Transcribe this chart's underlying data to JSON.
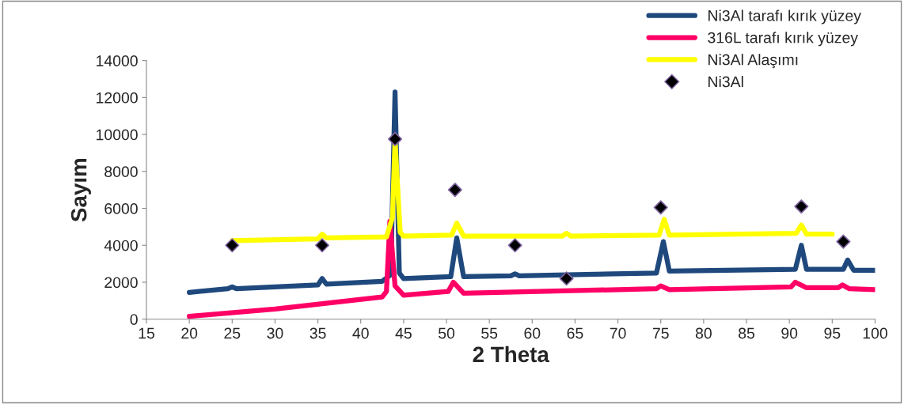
{
  "chart_data": {
    "type": "line",
    "xlabel": "2 Theta",
    "ylabel": "Sayım",
    "xlim": [
      15,
      100
    ],
    "xticks": [
      15,
      20,
      25,
      30,
      35,
      40,
      45,
      50,
      55,
      60,
      65,
      70,
      75,
      80,
      85,
      90,
      95,
      100
    ],
    "ylim": [
      0,
      14000
    ],
    "yticks": [
      0,
      2000,
      4000,
      6000,
      8000,
      10000,
      12000,
      14000
    ],
    "grid": false,
    "legend": "top right",
    "marker": "none",
    "line_style": "solid",
    "series": [
      {
        "name": "Ni3Al tarafı kırık yüzey",
        "color": "#1f497d",
        "x": [
          20,
          24.5,
          25,
          25.5,
          35,
          35.5,
          36,
          42.5,
          43.5,
          44,
          44.5,
          45,
          50.5,
          51.2,
          52,
          57.5,
          58,
          58.5,
          74.5,
          75.3,
          76,
          90.7,
          91.4,
          92,
          96.3,
          96.8,
          97.5,
          100
        ],
        "values": [
          1450,
          1650,
          1750,
          1650,
          1850,
          2200,
          1900,
          2050,
          2400,
          12300,
          2500,
          2200,
          2300,
          4400,
          2300,
          2350,
          2450,
          2350,
          2500,
          4200,
          2600,
          2700,
          4000,
          2700,
          2700,
          3200,
          2650,
          2650
        ]
      },
      {
        "name": "316L tarafı kırık yüzey",
        "color": "#ff0066",
        "x": [
          20,
          30,
          42.5,
          43,
          43.4,
          44,
          45,
          50.2,
          50.8,
          52,
          74.5,
          75,
          76,
          90.2,
          90.7,
          92,
          95.7,
          96.2,
          97,
          100
        ],
        "values": [
          150,
          550,
          1200,
          1500,
          5300,
          1800,
          1300,
          1500,
          2000,
          1400,
          1650,
          1800,
          1600,
          1750,
          2000,
          1700,
          1700,
          1850,
          1650,
          1600
        ]
      },
      {
        "name": "Ni3Al Alaşımı",
        "color": "#ffff00",
        "x": [
          25,
          35,
          35.5,
          36,
          43,
          43.7,
          44,
          44.6,
          45,
          50.6,
          51.2,
          52,
          63.5,
          64,
          64.5,
          74.8,
          75.4,
          76,
          90.8,
          91.4,
          92,
          95
        ],
        "values": [
          4250,
          4350,
          4600,
          4400,
          4450,
          5500,
          9700,
          4700,
          4500,
          4550,
          5200,
          4500,
          4500,
          4650,
          4500,
          4550,
          5400,
          4550,
          4650,
          5100,
          4600,
          4600
        ]
      },
      {
        "name": "Ni3Al",
        "type": "scatter",
        "marker": "diamond",
        "color": "#000000",
        "x": [
          25,
          35.5,
          44,
          51,
          58,
          64,
          75,
          91.4,
          96.3
        ],
        "values": [
          4000,
          4000,
          9750,
          7000,
          4000,
          2200,
          6050,
          6100,
          4200
        ]
      }
    ]
  }
}
